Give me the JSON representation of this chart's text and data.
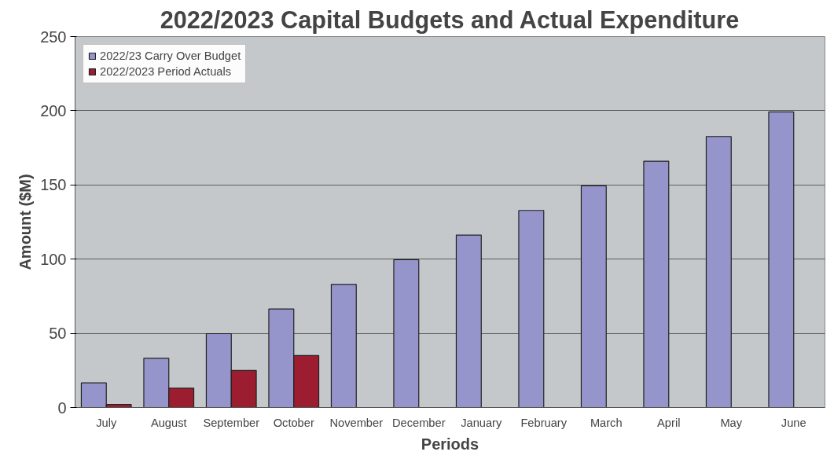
{
  "chart_data": {
    "type": "bar",
    "title": "2022/2023 Capital Budgets and Actual Expenditure",
    "xlabel": "Periods",
    "ylabel": "Amount ($M)",
    "categories": [
      "July",
      "August",
      "September",
      "October",
      "November",
      "December",
      "January",
      "February",
      "March",
      "April",
      "May",
      "June"
    ],
    "series": [
      {
        "name": "2022/23 Carry Over Budget",
        "color": "#9595cc",
        "values": [
          16.6,
          33.2,
          49.8,
          66.4,
          83,
          99.6,
          116.2,
          132.8,
          149.4,
          166,
          182.6,
          199.2
        ]
      },
      {
        "name": "2022/2023 Period Actuals",
        "color": "#9c1c30",
        "values": [
          2,
          13,
          25,
          35,
          null,
          null,
          null,
          null,
          null,
          null,
          null,
          null
        ]
      }
    ],
    "ylim": [
      0,
      250
    ],
    "yticks": [
      0,
      50,
      100,
      150,
      200,
      250
    ],
    "grid": "y",
    "legend": "top left"
  }
}
